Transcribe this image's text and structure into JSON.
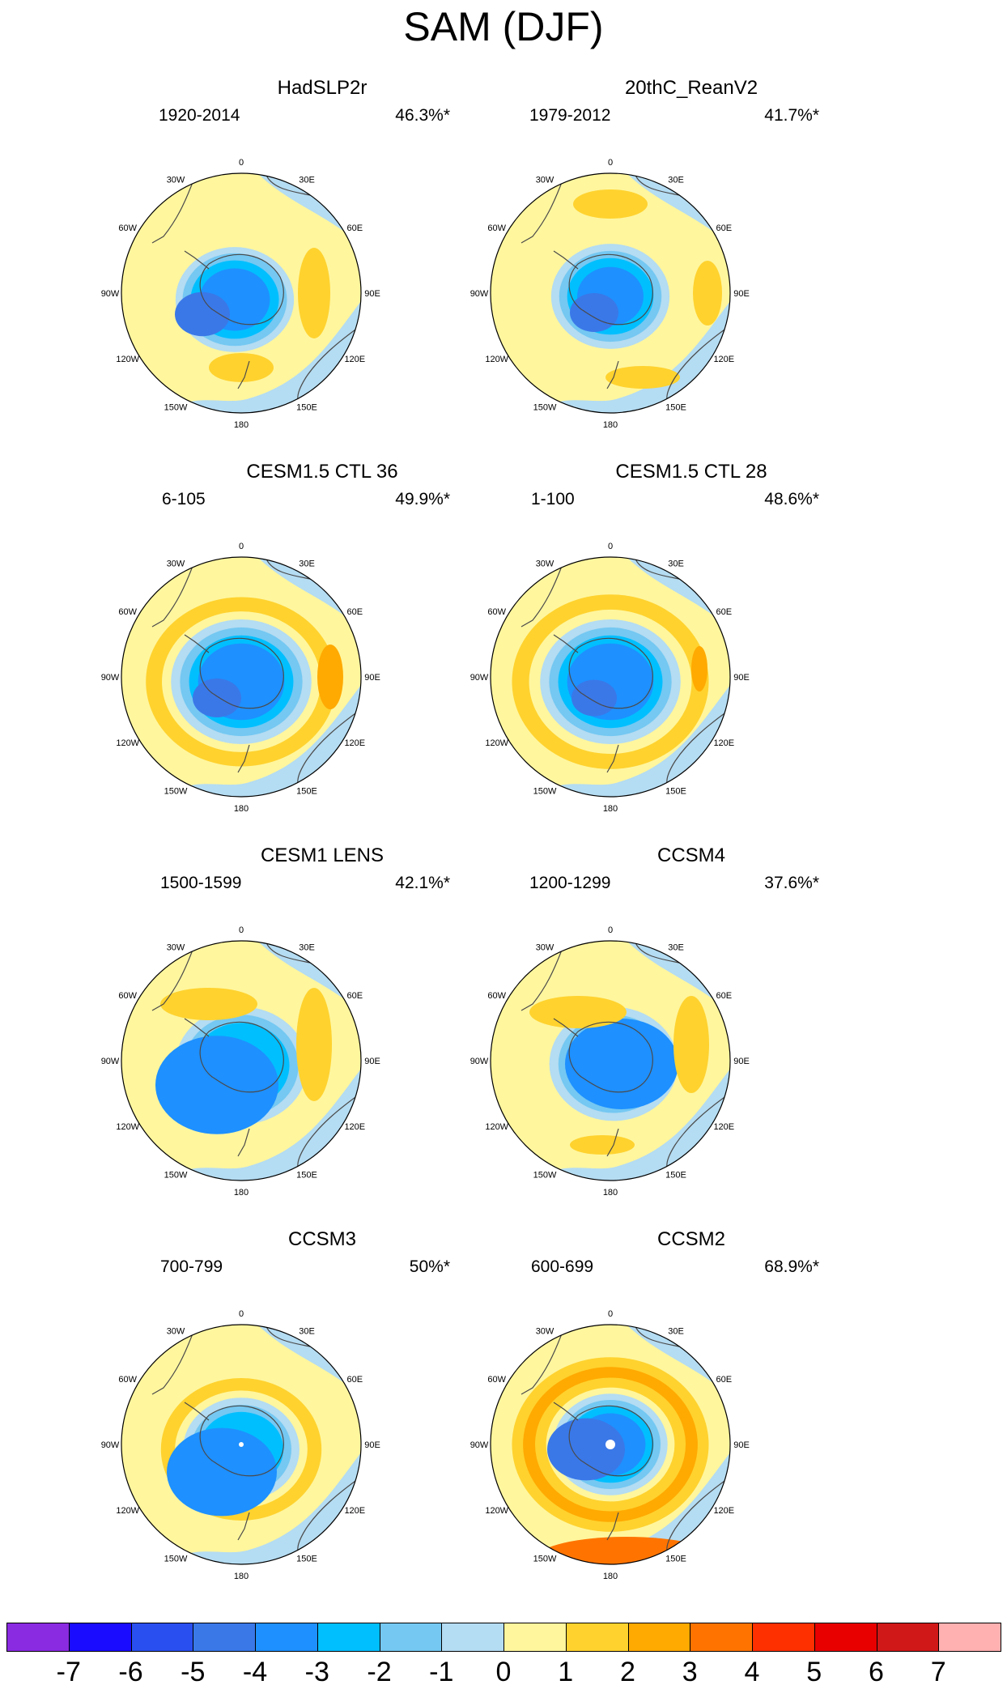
{
  "title": "SAM (DJF)",
  "lon_labels": [
    "0",
    "30E",
    "60E",
    "90E",
    "120E",
    "150E",
    "180",
    "150W",
    "120W",
    "90W",
    "60W",
    "30W"
  ],
  "panels": [
    {
      "title": "HadSLP2r",
      "period": "1920-2014",
      "variance": "46.3%*"
    },
    {
      "title": "20thC_ReanV2",
      "period": "1979-2012",
      "variance": "41.7%*"
    },
    {
      "title": "CESM1.5 CTL 36",
      "period": "6-105",
      "variance": "49.9%*"
    },
    {
      "title": "CESM1.5 CTL 28",
      "period": "1-100",
      "variance": "48.6%*"
    },
    {
      "title": "CESM1 LENS",
      "period": "1500-1599",
      "variance": "42.1%*"
    },
    {
      "title": "CCSM4",
      "period": "1200-1299",
      "variance": "37.6%*"
    },
    {
      "title": "CCSM3",
      "period": "700-799",
      "variance": "50%*"
    },
    {
      "title": "CCSM2",
      "period": "600-699",
      "variance": "68.9%*"
    }
  ],
  "colorbar": {
    "labels": [
      "-7",
      "-6",
      "-5",
      "-4",
      "-3",
      "-2",
      "-1",
      "0",
      "1",
      "2",
      "3",
      "4",
      "5",
      "6",
      "7"
    ],
    "colors": [
      "#8a2be2",
      "#1a0dff",
      "#2a4ff0",
      "#3a78e8",
      "#1e90ff",
      "#00bfff",
      "#74c8f2",
      "#b4dcf2",
      "#fff69e",
      "#ffd22e",
      "#ffaa00",
      "#ff7400",
      "#ff3000",
      "#e80000",
      "#d01818",
      "#ffb0b0"
    ]
  },
  "colors": {
    "ocean_neg": "#b4dcf2",
    "land_line": "#4a4a4a",
    "background": "#fff69e"
  }
}
